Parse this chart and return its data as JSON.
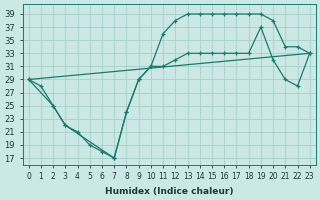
{
  "xlabel": "Humidex (Indice chaleur)",
  "bg_color": "#cce8e4",
  "grid_color": "#a8d0cc",
  "line_color": "#1a7a6e",
  "xlim": [
    -0.5,
    23.5
  ],
  "ylim": [
    16,
    40.5
  ],
  "xticks": [
    0,
    1,
    2,
    3,
    4,
    5,
    6,
    7,
    8,
    9,
    10,
    11,
    12,
    13,
    14,
    15,
    16,
    17,
    18,
    19,
    20,
    21,
    22,
    23
  ],
  "yticks": [
    17,
    19,
    21,
    23,
    25,
    27,
    29,
    31,
    33,
    35,
    37,
    39
  ],
  "line1_x": [
    0,
    1,
    2,
    3,
    4,
    5,
    6,
    7,
    8,
    9,
    10,
    11,
    12,
    13,
    14,
    15,
    16,
    17,
    18,
    19,
    20,
    21,
    22,
    23
  ],
  "line1_y": [
    29,
    28,
    25,
    22,
    21,
    19,
    18,
    17,
    24,
    29,
    31,
    36,
    38,
    39,
    39,
    39,
    39,
    39,
    39,
    39,
    38,
    34,
    34,
    33
  ],
  "line2_x": [
    0,
    2,
    3,
    7,
    8,
    9,
    10,
    11,
    12,
    13,
    14,
    15,
    16,
    17,
    18,
    19,
    20,
    21,
    22,
    23
  ],
  "line2_y": [
    29,
    25,
    22,
    17,
    24,
    29,
    31,
    31,
    32,
    33,
    33,
    33,
    33,
    33,
    33,
    37,
    32,
    29,
    28,
    33
  ],
  "line3_x": [
    0,
    23
  ],
  "line3_y": [
    29,
    33
  ]
}
